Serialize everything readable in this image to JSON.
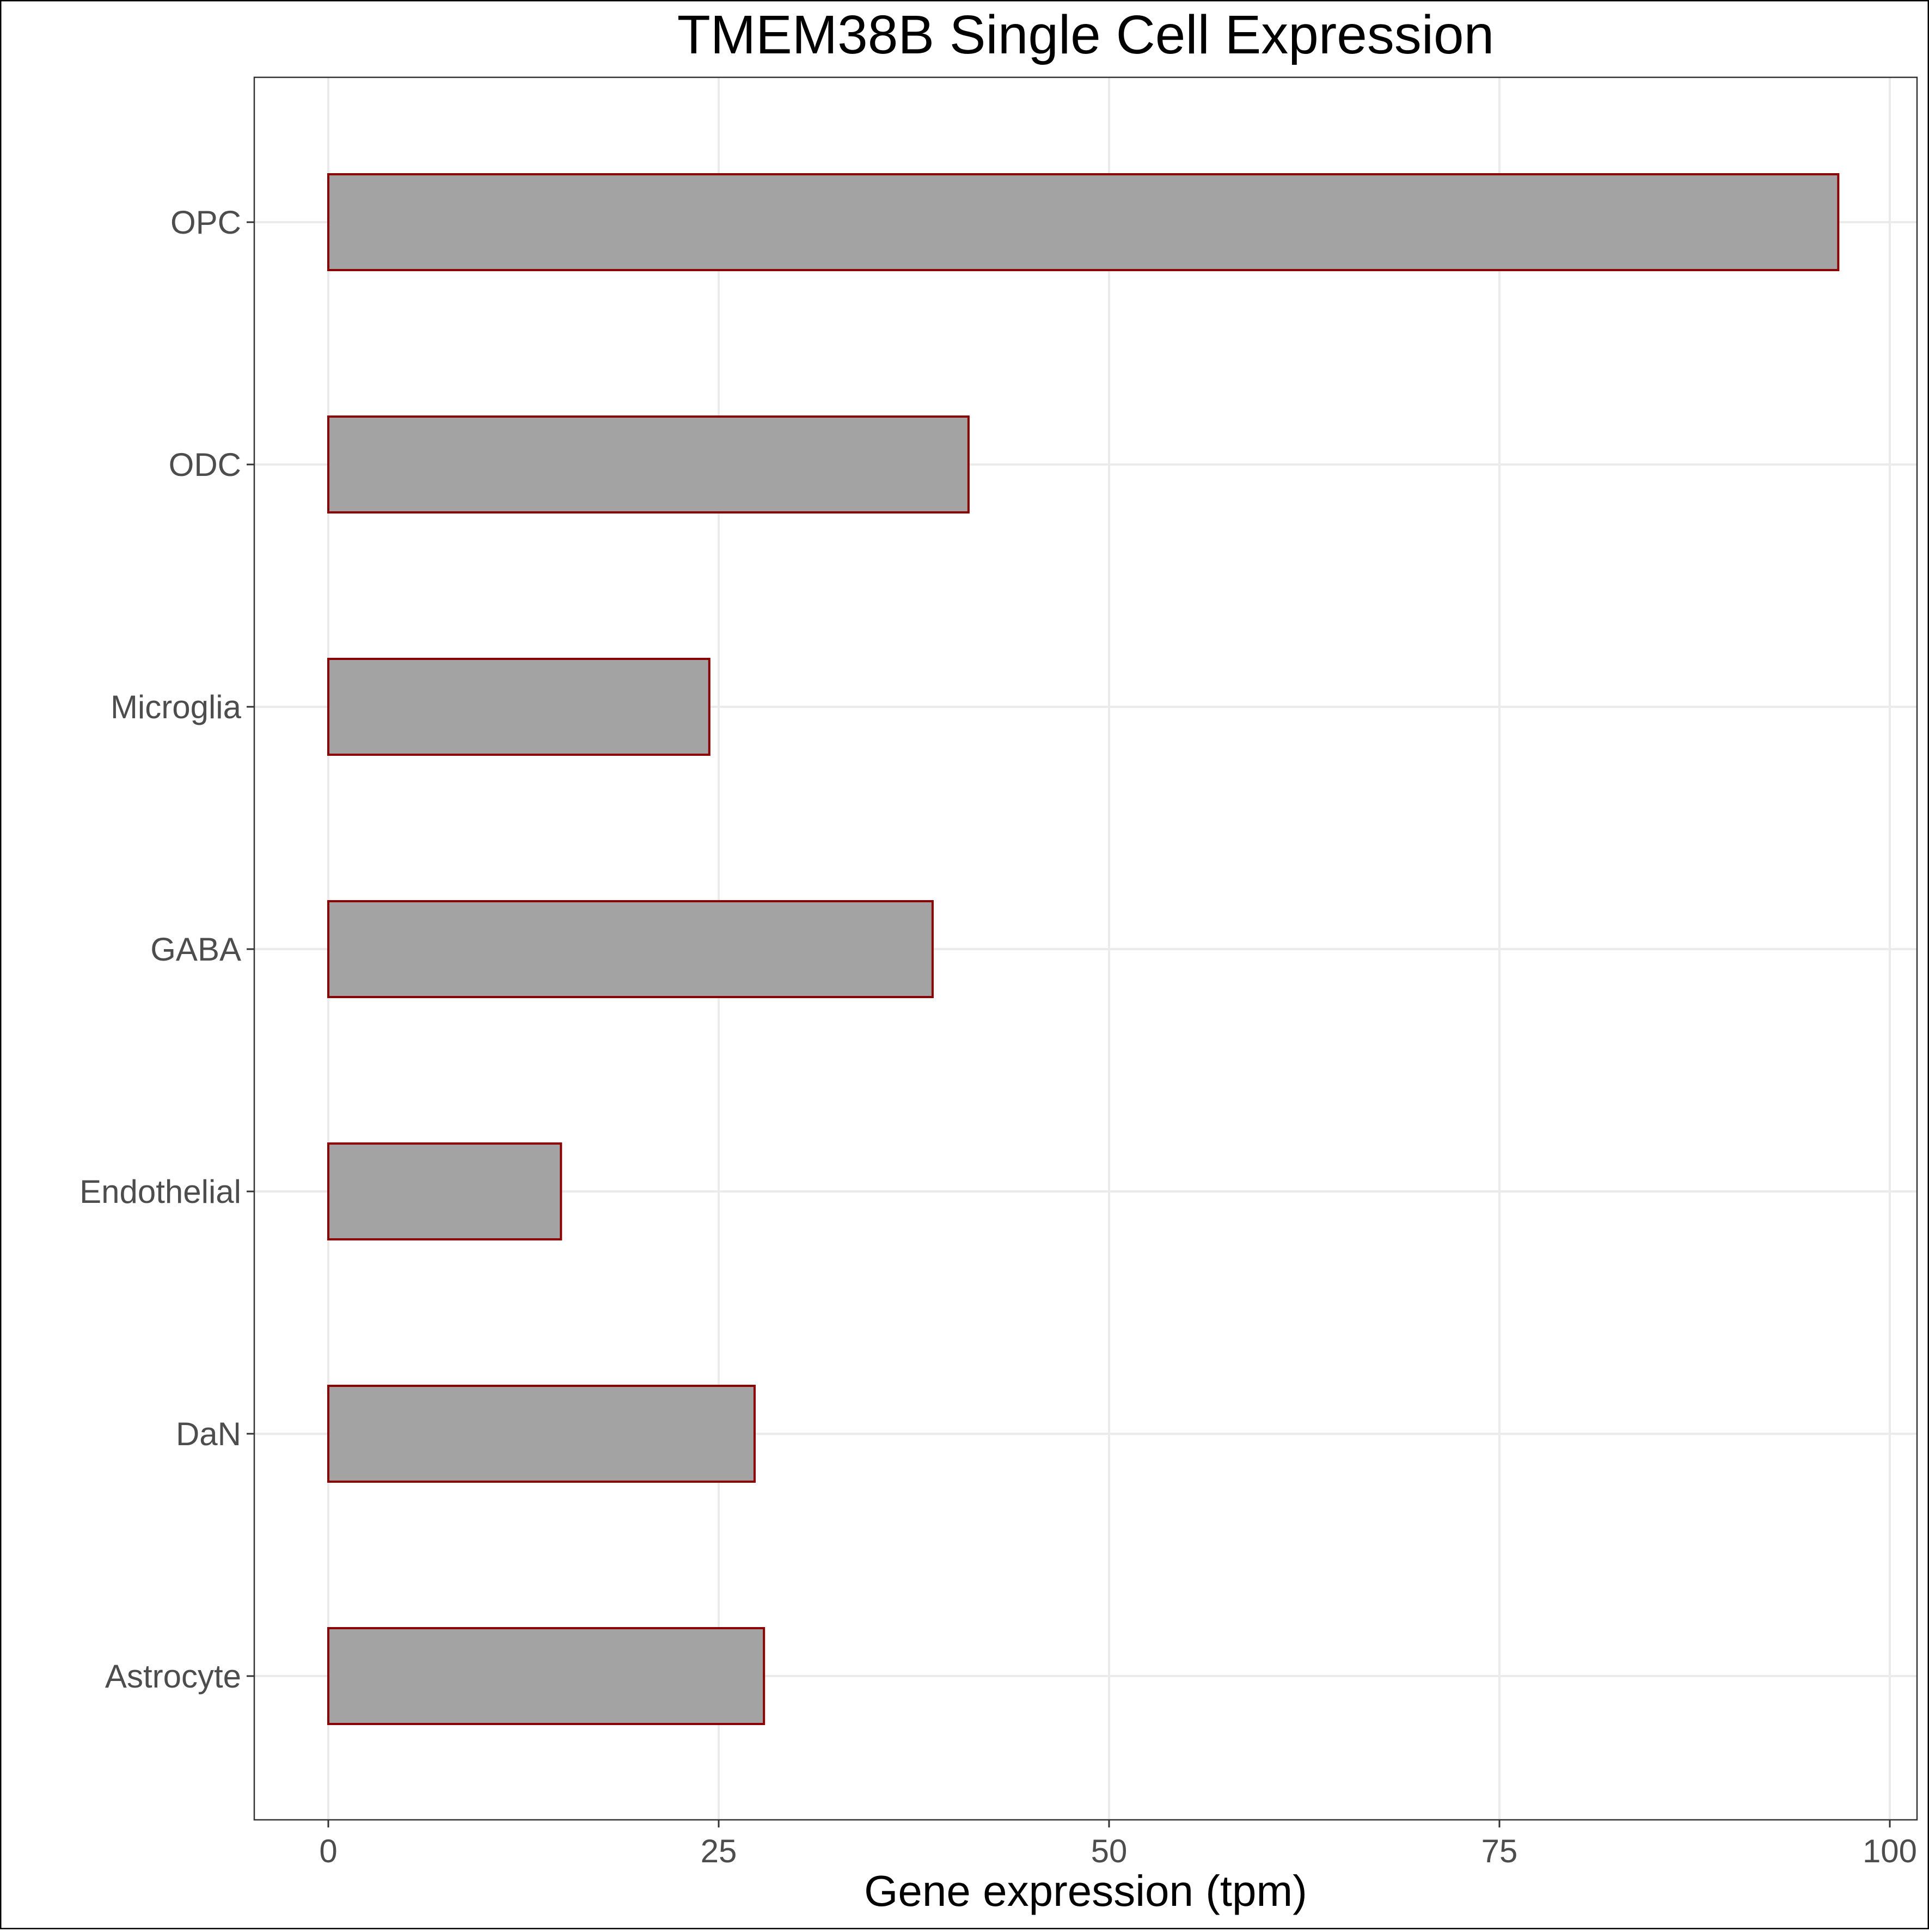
{
  "chart_data": {
    "type": "bar",
    "orientation": "horizontal",
    "title": "TMEM38B Single Cell Expression",
    "xlabel": "Gene expression (tpm)",
    "ylabel": "",
    "categories": [
      "OPC",
      "ODC",
      "Microglia",
      "GABA",
      "Endothelial",
      "DaN",
      "Astrocyte"
    ],
    "values": [
      96.7,
      41.0,
      24.4,
      38.7,
      14.9,
      27.3,
      27.9
    ],
    "xlim": [
      0,
      100
    ],
    "xticks": [
      0,
      25,
      50,
      75,
      100
    ],
    "xtick_labels": [
      "0",
      "25",
      "50",
      "75",
      "100"
    ],
    "grid": true,
    "legend": "none",
    "colors": {
      "bar_fill": "#a3a3a3",
      "bar_stroke": "#8b0000",
      "grid": "#ebebeb",
      "panel_border": "#333333",
      "tick_text": "#4d4d4d",
      "title_text": "#000000"
    }
  }
}
